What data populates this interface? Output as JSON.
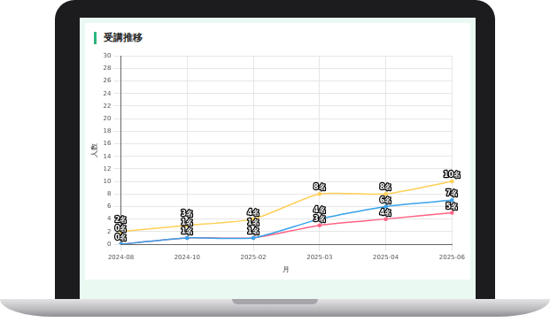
{
  "chart_data": {
    "type": "line",
    "title": "受講推移",
    "x_label": "月",
    "y_label": "人数",
    "categories": [
      "2024-08",
      "2024-10",
      "2025-02",
      "2025-03",
      "2025-04",
      "2025-06"
    ],
    "series": [
      {
        "color": "#ffce56",
        "values": [
          2,
          3,
          4,
          8,
          8,
          10
        ],
        "value_labels": [
          "2名",
          "3名",
          "4名",
          "8名",
          "8名",
          "10名"
        ]
      },
      {
        "color": "#36a2eb",
        "values": [
          0,
          1,
          1,
          4,
          6,
          7
        ],
        "value_labels": [
          "0名",
          "1名",
          "1名",
          "4名",
          "6名",
          "7名"
        ]
      },
      {
        "color": "#ff6384",
        "values": [
          0,
          1,
          1,
          3,
          4,
          5
        ],
        "value_labels": [
          "0名",
          "1名",
          "1名",
          "3名",
          "4名",
          "5名"
        ]
      }
    ],
    "ylim": [
      0,
      30
    ],
    "yticks": [
      0,
      2,
      4,
      6,
      8,
      10,
      12,
      14,
      16,
      18,
      20,
      22,
      24,
      26,
      28,
      30
    ],
    "grid": true,
    "data_labels": true
  }
}
